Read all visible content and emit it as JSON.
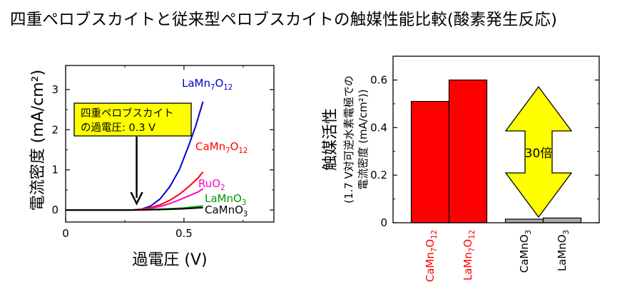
{
  "title": "四重ペロブスカイトと従来型ペロブスカイトの触媒性能比較(酸素発生反応)",
  "colors": {
    "red": "#ff0000",
    "blue": "#0000cc",
    "magenta": "#ff00cc",
    "green": "#009900",
    "black": "#000000",
    "yellow": "#ffff00",
    "gray": "#a6a6a6"
  },
  "chart_data": [
    {
      "type": "line",
      "xlabel": "過電圧 (V)",
      "ylabel": "電流密度 (mA/cm²)",
      "xlim": [
        0,
        0.88
      ],
      "ylim": [
        -0.3,
        3.6
      ],
      "xticks": [
        {
          "value": 0,
          "label": "0"
        },
        {
          "value": 0.5,
          "label": "0.5"
        }
      ],
      "yticks": [
        {
          "value": 0,
          "label": "0"
        },
        {
          "value": 1,
          "label": "1"
        },
        {
          "value": 2,
          "label": "2"
        },
        {
          "value": 3,
          "label": "3"
        }
      ],
      "series": [
        {
          "name": "LaMn7O12",
          "label_main": "LaMn",
          "label_sub1": "7",
          "label_mid": "O",
          "label_sub2": "12",
          "color": "#0000cc",
          "x": [
            0,
            0.28,
            0.32,
            0.36,
            0.4,
            0.44,
            0.48,
            0.52,
            0.55,
            0.58
          ],
          "y": [
            0,
            0,
            0.02,
            0.1,
            0.28,
            0.58,
            1.0,
            1.6,
            2.1,
            2.7
          ]
        },
        {
          "name": "CaMn7O12",
          "label_main": "CaMn",
          "label_sub1": "7",
          "label_mid": "O",
          "label_sub2": "12",
          "color": "#ff0000",
          "x": [
            0,
            0.28,
            0.32,
            0.36,
            0.4,
            0.44,
            0.48,
            0.52,
            0.56,
            0.58
          ],
          "y": [
            0,
            0,
            0.02,
            0.06,
            0.13,
            0.24,
            0.39,
            0.58,
            0.8,
            0.95
          ]
        },
        {
          "name": "RuO2",
          "label_main": "RuO",
          "label_sub1": "2",
          "label_mid": "",
          "label_sub2": "",
          "color": "#ff00cc",
          "x": [
            0,
            0.28,
            0.32,
            0.36,
            0.4,
            0.44,
            0.48,
            0.52,
            0.56,
            0.58
          ],
          "y": [
            0,
            0,
            0.01,
            0.04,
            0.09,
            0.16,
            0.25,
            0.35,
            0.45,
            0.53
          ]
        },
        {
          "name": "LaMnO3",
          "label_main": "LaMnO",
          "label_sub1": "3",
          "label_mid": "",
          "label_sub2": "",
          "color": "#009900",
          "x": [
            0,
            0.3,
            0.4,
            0.5,
            0.58
          ],
          "y": [
            0,
            0,
            0.02,
            0.05,
            0.1
          ]
        },
        {
          "name": "CaMnO3",
          "label_main": "CaMnO",
          "label_sub1": "3",
          "label_mid": "",
          "label_sub2": "",
          "color": "#000000",
          "x": [
            0,
            0.3,
            0.4,
            0.5,
            0.58
          ],
          "y": [
            0,
            0,
            0.01,
            0.03,
            0.06
          ]
        }
      ],
      "annotation": {
        "line1": "四重ペロブスカイト",
        "line2": "の過電圧: 0.3 V",
        "arrow_x": 0.3
      }
    },
    {
      "type": "bar",
      "ylabel_line1": "触媒活性",
      "ylabel_line2": "(1.7 V対可逆水素電極での",
      "ylabel_line3": "電流密度 (mA/cm²))",
      "ylim": [
        0,
        0.7
      ],
      "yticks": [
        {
          "value": 0,
          "label": "0"
        },
        {
          "value": 0.2,
          "label": "0.2"
        },
        {
          "value": 0.4,
          "label": "0.4"
        },
        {
          "value": 0.6,
          "label": "0.6"
        }
      ],
      "bars": [
        {
          "name": "CaMn7O12",
          "label_main": "CaMn",
          "label_sub1": "7",
          "label_mid": "O",
          "label_sub2": "12",
          "value": 0.51,
          "color": "#ff0000"
        },
        {
          "name": "LaMn7O12",
          "label_main": "LaMn",
          "label_sub1": "7",
          "label_mid": "O",
          "label_sub2": "12",
          "value": 0.6,
          "color": "#ff0000"
        },
        {
          "name": "CaMnO3",
          "label_main": "CaMnO",
          "label_sub1": "3",
          "label_mid": "",
          "label_sub2": "",
          "value": 0.015,
          "color": "#a6a6a6"
        },
        {
          "name": "LaMnO3",
          "label_main": "LaMnO",
          "label_sub1": "3",
          "label_mid": "",
          "label_sub2": "",
          "value": 0.02,
          "color": "#a6a6a6"
        }
      ],
      "arrow_label": "30倍"
    }
  ]
}
